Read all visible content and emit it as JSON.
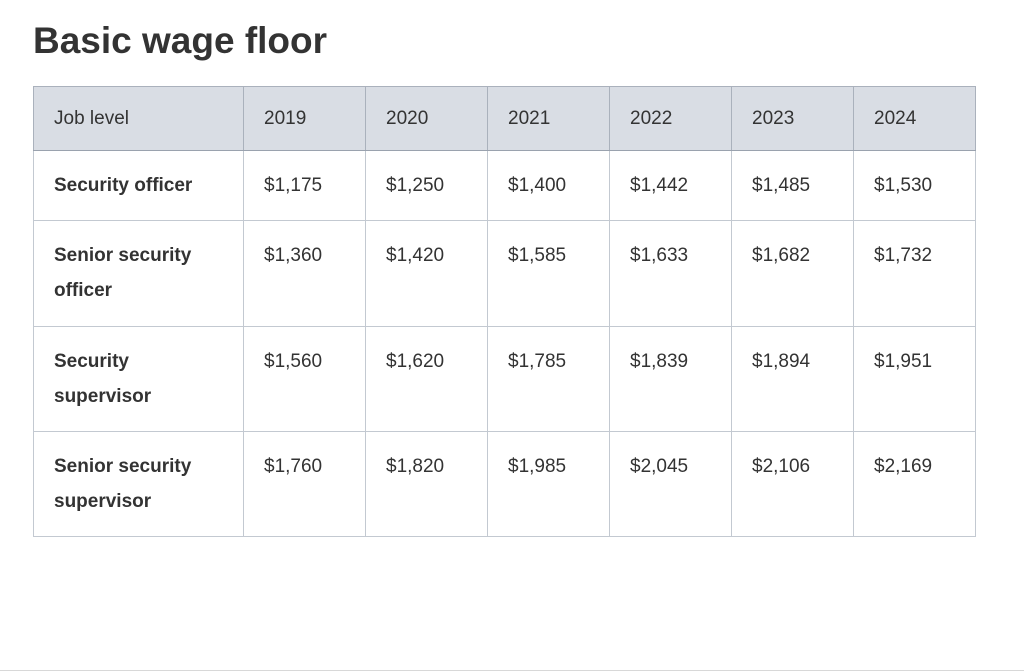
{
  "page": {
    "title": "Basic wage floor"
  },
  "table": {
    "columns": [
      "Job level",
      "2019",
      "2020",
      "2021",
      "2022",
      "2023",
      "2024"
    ],
    "rows": [
      {
        "label": "Security officer",
        "values": [
          "$1,175",
          "$1,250",
          "$1,400",
          "$1,442",
          "$1,485",
          "$1,530"
        ]
      },
      {
        "label": "Senior security officer",
        "values": [
          "$1,360",
          "$1,420",
          "$1,585",
          "$1,633",
          "$1,682",
          "$1,732"
        ]
      },
      {
        "label": "Security supervisor",
        "values": [
          "$1,560",
          "$1,620",
          "$1,785",
          "$1,839",
          "$1,894",
          "$1,951"
        ]
      },
      {
        "label": "Senior security supervisor",
        "values": [
          "$1,760",
          "$1,820",
          "$1,985",
          "$2,045",
          "$2,106",
          "$2,169"
        ]
      }
    ]
  },
  "colors": {
    "header_bg": "#d9dde4",
    "border": "#c3c9d1",
    "header_border": "#9aa2ae",
    "text": "#333333"
  }
}
